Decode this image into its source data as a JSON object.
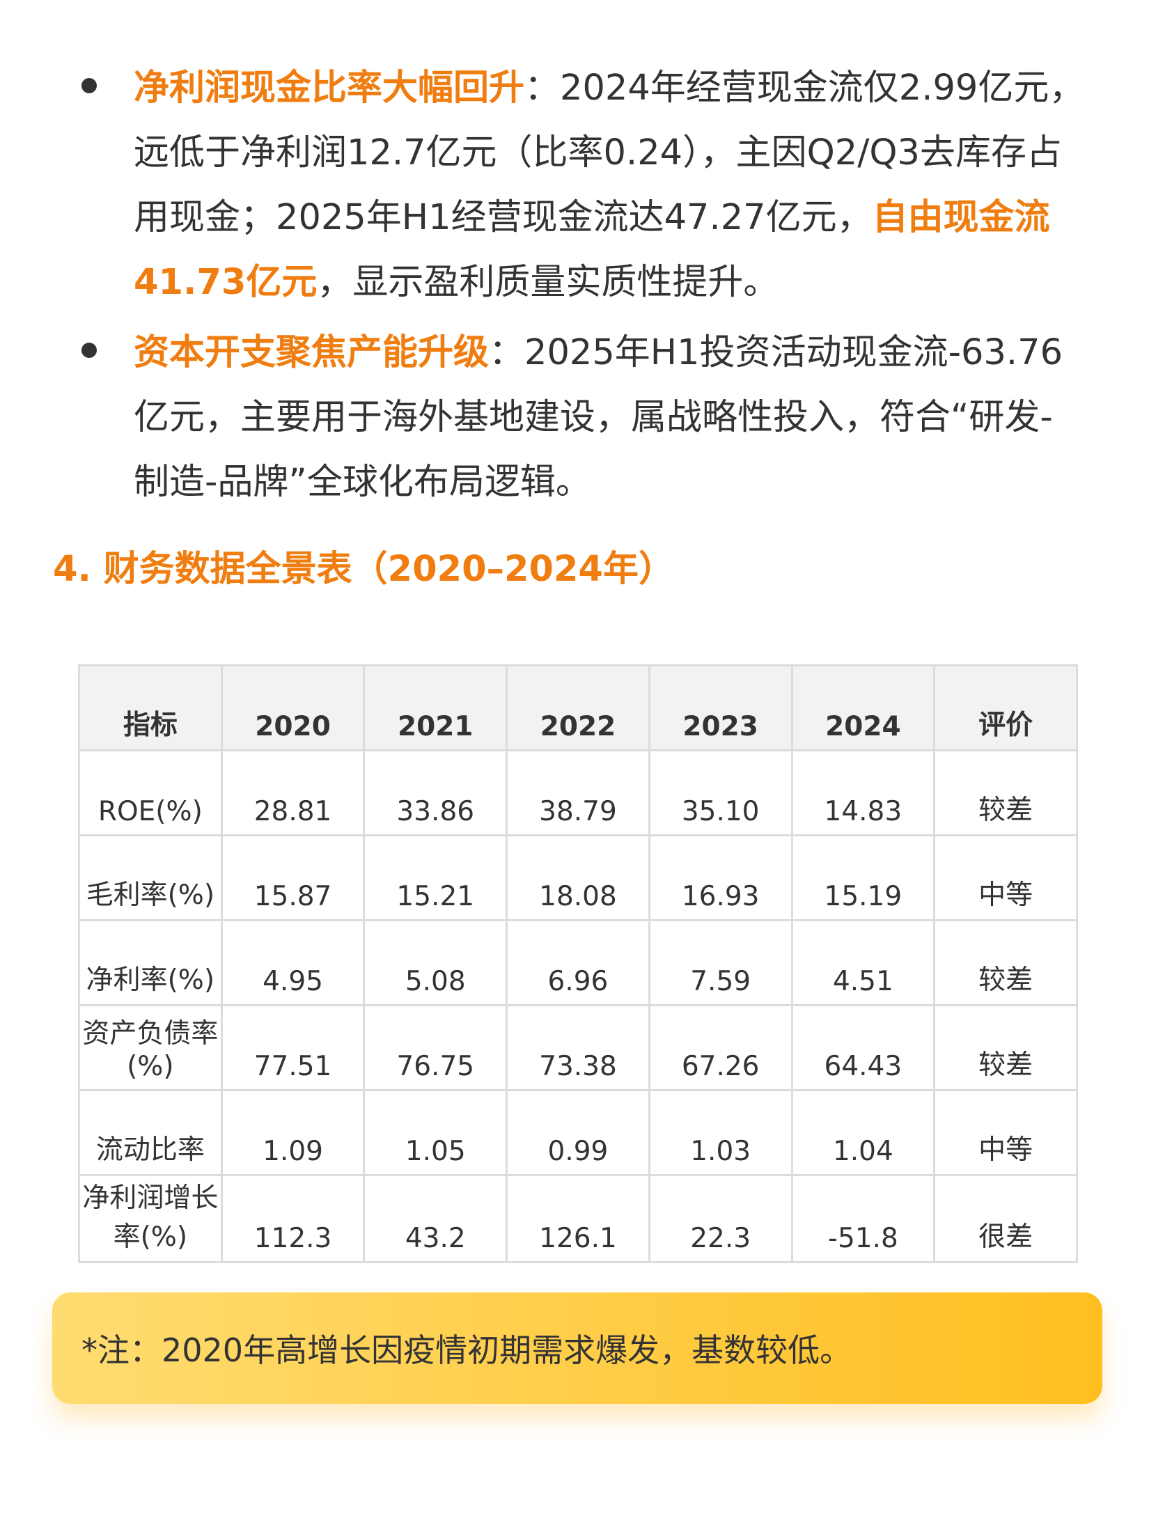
{
  "bullets": [
    {
      "segments": [
        {
          "text": "净利润现金比率大幅回升",
          "highlight": true
        },
        {
          "text": "：2024年经营现金流仅2.99亿元，远低于净利润12.7亿元（比率0.24），主因Q2/Q3去库存占用现金；2025年H1经营现金流达47.27亿元，",
          "highlight": false
        },
        {
          "text": "自由现金流41.73亿元",
          "highlight": true
        },
        {
          "text": "，显示盈利质量实质性提升。",
          "highlight": false
        }
      ]
    },
    {
      "segments": [
        {
          "text": "资本开支聚焦产能升级",
          "highlight": true
        },
        {
          "text": "：2025年H1投资活动现金流-63.76亿元，主要用于海外基地建设，属战略性投入，符合“研发-制造-品牌”全球化布局逻辑。",
          "highlight": false
        }
      ]
    }
  ],
  "section_title": "4. 财务数据全景表（2020–2024年）",
  "table": {
    "headers": [
      "指标",
      "2020",
      "2021",
      "2022",
      "2023",
      "2024",
      "评价"
    ],
    "rows": [
      [
        "ROE(%)",
        "28.81",
        "33.86",
        "38.79",
        "35.10",
        "14.83",
        "较差"
      ],
      [
        "毛利率(%)",
        "15.87",
        "15.21",
        "18.08",
        "16.93",
        "15.19",
        "中等"
      ],
      [
        "净利率(%)",
        "4.95",
        "5.08",
        "6.96",
        "7.59",
        "4.51",
        "较差"
      ],
      [
        "资产负债率(%)",
        "77.51",
        "76.75",
        "73.38",
        "67.26",
        "64.43",
        "较差"
      ],
      [
        "流动比率",
        "1.09",
        "1.05",
        "0.99",
        "1.03",
        "1.04",
        "中等"
      ],
      [
        "净利润增长率(%)",
        "112.3",
        "43.2",
        "126.1",
        "22.3",
        "-51.8",
        "很差"
      ]
    ]
  },
  "note": "*注：2020年高增长因疫情初期需求爆发，基数较低。",
  "colors": {
    "accent": "#f07d10",
    "text": "#333333",
    "table_header_bg": "#f2f2f2",
    "table_border": "#dcdcdc",
    "note_gradient_start": "#ffdc72",
    "note_gradient_end": "#ffbf1f"
  }
}
